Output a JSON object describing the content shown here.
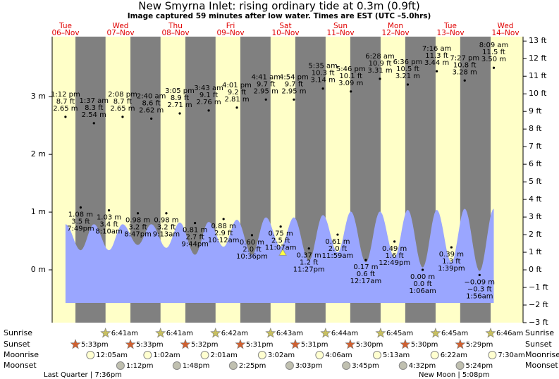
{
  "chart_data": {
    "type": "tide",
    "title": "New Smyrna Inlet: rising  ordinary tide at 0.3m (0.9ft)",
    "subtitle": "Image captured 59 minutes after low water. Times are EST (UTC –5.0hrs)",
    "categories": [
      "Tue",
      "Wed",
      "Thu",
      "Fri",
      "Sat",
      "Sun",
      "Mon",
      "Tue",
      "Wed"
    ],
    "dates": [
      "06–Nov",
      "07–Nov",
      "08–Nov",
      "09–Nov",
      "10–Nov",
      "11–Nov",
      "12–Nov",
      "13–Nov",
      "14–Nov"
    ],
    "x": [
      "1:12 pm",
      "7:49pm",
      "1:37 am",
      "8:10am",
      "2:08 pm",
      "8:47pm",
      "2:40 am",
      "9:13am",
      "3:05 pm",
      "9:44pm",
      "3:43 am",
      "10:12am",
      "4:01 pm",
      "10:36pm",
      "4:41 am",
      "11:07am",
      "4:54 pm",
      "11:27pm",
      "5:35 am",
      "11:59am",
      "5:46 pm",
      "12:17am",
      "6:28 am",
      "12:49pm",
      "6:36 pm",
      "1:06am",
      "7:16 am",
      "1:39pm",
      "7:27 pm",
      "1:56am",
      "8:09 am"
    ],
    "values": [
      2.65,
      1.08,
      2.54,
      1.03,
      2.65,
      0.98,
      2.62,
      0.98,
      2.71,
      0.81,
      2.76,
      0.88,
      2.81,
      0.6,
      2.95,
      0.75,
      2.95,
      0.37,
      3.14,
      0.61,
      3.09,
      0.17,
      3.31,
      0.49,
      3.21,
      0.0,
      3.44,
      0.39,
      3.28,
      -0.09,
      3.5
    ],
    "value_labels": [
      "2.65 m",
      "1.08 m",
      "2.54 m",
      "1.03 m",
      "2.65 m",
      "0.98 m",
      "2.62 m",
      "0.98 m",
      "2.71 m",
      "0.81 m",
      "2.76 m",
      "0.88 m",
      "2.81 m",
      "0.60 m",
      "2.95 m",
      "0.75 m",
      "2.95 m",
      "0.37 m",
      "3.14 m",
      "0.61 m",
      "3.09 m",
      "0.17 m",
      "3.31 m",
      "0.49 m",
      "3.21 m",
      "0.00 m",
      "3.44 m",
      "0.39 m",
      "3.28 m",
      "−0.09 m",
      "3.50 m"
    ],
    "ft_labels": [
      "8.7 ft",
      "3.5 ft",
      "8.3 ft",
      "3.4 ft",
      "8.7 ft",
      "3.2 ft",
      "8.6 ft",
      "3.2 ft",
      "8.9 ft",
      "2.7 ft",
      "9.1 ft",
      "2.9 ft",
      "9.2 ft",
      "2.0 ft",
      "9.7 ft",
      "2.5 ft",
      "9.7 ft",
      "1.2 ft",
      "10.3 ft",
      "2.0 ft",
      "10.1 ft",
      "0.6 ft",
      "10.9 ft",
      "1.6 ft",
      "10.5 ft",
      "0.0 ft",
      "11.3 ft",
      "1.3 ft",
      "10.8 ft",
      "−0.3 ft",
      "11.5 ft"
    ],
    "curve_values": [
      0.79,
      0.34,
      0.79,
      0.34,
      0.79,
      0.43,
      0.79,
      0.38,
      0.82,
      0.26,
      0.83,
      0.4,
      0.87,
      0.26,
      0.91,
      0.4,
      0.91,
      0.16,
      0.95,
      0.3,
      1.01,
      0.13,
      1.01,
      0.22,
      1.04,
      0.04,
      1.04,
      0.13,
      1.06,
      -0.02,
      1.06
    ],
    "curve_color": "#9aa6ff",
    "current_level": 0.3,
    "ylim": [
      -0.915,
      4.04
    ],
    "yticks": [
      {
        "value": 0,
        "label": "0 m"
      },
      {
        "value": 1,
        "label": "1 m"
      },
      {
        "value": 2,
        "label": "2 m"
      },
      {
        "value": 3,
        "label": "3 m"
      }
    ],
    "y2lim": [
      -3,
      13.25
    ],
    "y2ticks": [
      {
        "value": -3,
        "label": "−3 ft"
      },
      {
        "value": -2,
        "label": "−2 ft"
      },
      {
        "value": -1,
        "label": "−1 ft"
      },
      {
        "value": 0,
        "label": "0 ft"
      },
      {
        "value": 1,
        "label": "1 ft"
      },
      {
        "value": 2,
        "label": "2 ft"
      },
      {
        "value": 3,
        "label": "3 ft"
      },
      {
        "value": 4,
        "label": "4 ft"
      },
      {
        "value": 5,
        "label": "5 ft"
      },
      {
        "value": 6,
        "label": "6 ft"
      },
      {
        "value": 7,
        "label": "7 ft"
      },
      {
        "value": 8,
        "label": "8 ft"
      },
      {
        "value": 9,
        "label": "9 ft"
      },
      {
        "value": 10,
        "label": "10 ft"
      },
      {
        "value": 11,
        "label": "11 ft"
      },
      {
        "value": 12,
        "label": "12 ft"
      },
      {
        "value": 13,
        "label": "13 ft"
      }
    ],
    "rows": {
      "sunrise": {
        "label": "Sunrise",
        "times": [
          "6:41am",
          "6:41am",
          "6:42am",
          "6:43am",
          "6:44am",
          "6:45am",
          "6:45am",
          "6:46am"
        ]
      },
      "sunset": {
        "label": "Sunset",
        "times": [
          "5:33pm",
          "5:33pm",
          "5:32pm",
          "5:31pm",
          "5:31pm",
          "5:30pm",
          "5:30pm",
          "5:29pm"
        ]
      },
      "moonrise": {
        "label": "Moonrise",
        "times": [
          "12:05am",
          "1:02am",
          "2:01am",
          "3:02am",
          "4:06am",
          "5:13am",
          "6:22am",
          "7:30am"
        ]
      },
      "moonset": {
        "label": "Moonset",
        "times": [
          "1:12pm",
          "1:48pm",
          "2:25pm",
          "3:03pm",
          "3:45pm",
          "4:32pm",
          "5:24pm"
        ]
      }
    },
    "moon_phases": [
      "Last Quarter | 7:36pm",
      "New Moon | 5:08pm"
    ]
  }
}
